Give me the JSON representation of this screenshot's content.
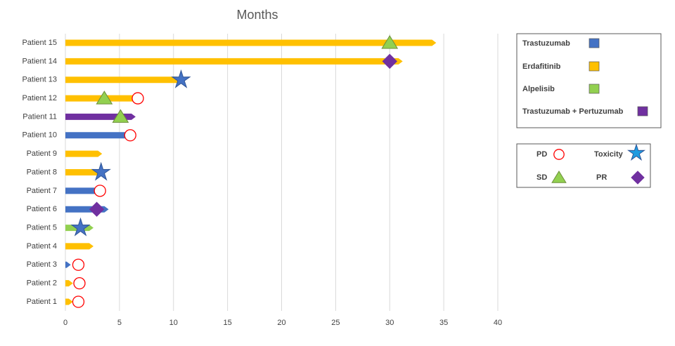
{
  "chart_data": {
    "type": "swimmer",
    "title": "Months",
    "categories": [
      "Patient 1",
      "Patient 2",
      "Patient 3",
      "Patient 4",
      "Patient 5",
      "Patient 6",
      "Patient 7",
      "Patient 8",
      "Patient 9",
      "Patient 10",
      "Patient 11",
      "Patient 12",
      "Patient 13",
      "Patient 14",
      "Patient 15"
    ],
    "series": [
      {
        "name": "Trastuzumab",
        "color": "#4472c4",
        "values": [
          null,
          null,
          0.5,
          null,
          null,
          4.0,
          3.2,
          null,
          null,
          6.0,
          null,
          null,
          null,
          null,
          null
        ]
      },
      {
        "name": "Erdafitinib",
        "color": "#ffc000",
        "values": [
          0.7,
          0.7,
          null,
          2.6,
          null,
          null,
          null,
          3.4,
          3.4,
          null,
          null,
          6.7,
          10.7,
          31.2,
          34.3
        ]
      },
      {
        "name": "Alpelisib",
        "color": "#92d050",
        "values": [
          null,
          null,
          null,
          null,
          2.6,
          null,
          null,
          null,
          null,
          null,
          null,
          null,
          null,
          null,
          null
        ]
      },
      {
        "name": "Trastuzumab + Pertuzumab",
        "color": "#7030a0",
        "values": [
          null,
          null,
          null,
          null,
          null,
          null,
          null,
          null,
          null,
          null,
          6.5,
          null,
          null,
          null,
          null
        ]
      }
    ],
    "markers": [
      {
        "name": "PD",
        "shape": "circle",
        "color": "#ff0000",
        "values": [
          1.2,
          1.3,
          1.2,
          null,
          null,
          null,
          3.2,
          null,
          null,
          6.0,
          null,
          6.7,
          null,
          null,
          null
        ]
      },
      {
        "name": "Toxicity",
        "shape": "star",
        "color": "#4472c4",
        "values": [
          null,
          null,
          null,
          null,
          1.4,
          null,
          null,
          3.3,
          null,
          null,
          null,
          null,
          10.7,
          null,
          null
        ]
      },
      {
        "name": "SD",
        "shape": "triangle",
        "color": "#92d050",
        "values": [
          null,
          null,
          null,
          null,
          null,
          null,
          null,
          null,
          null,
          null,
          5.1,
          3.6,
          null,
          null,
          30
        ]
      },
      {
        "name": "PR",
        "shape": "diamond",
        "color": "#7030a0",
        "values": [
          null,
          null,
          null,
          null,
          null,
          2.9,
          null,
          null,
          null,
          null,
          null,
          null,
          null,
          30,
          null
        ]
      }
    ],
    "xlim": [
      0,
      40
    ],
    "xticks": [
      0,
      5,
      10,
      15,
      20,
      25,
      30,
      35,
      40
    ],
    "grid": true
  }
}
